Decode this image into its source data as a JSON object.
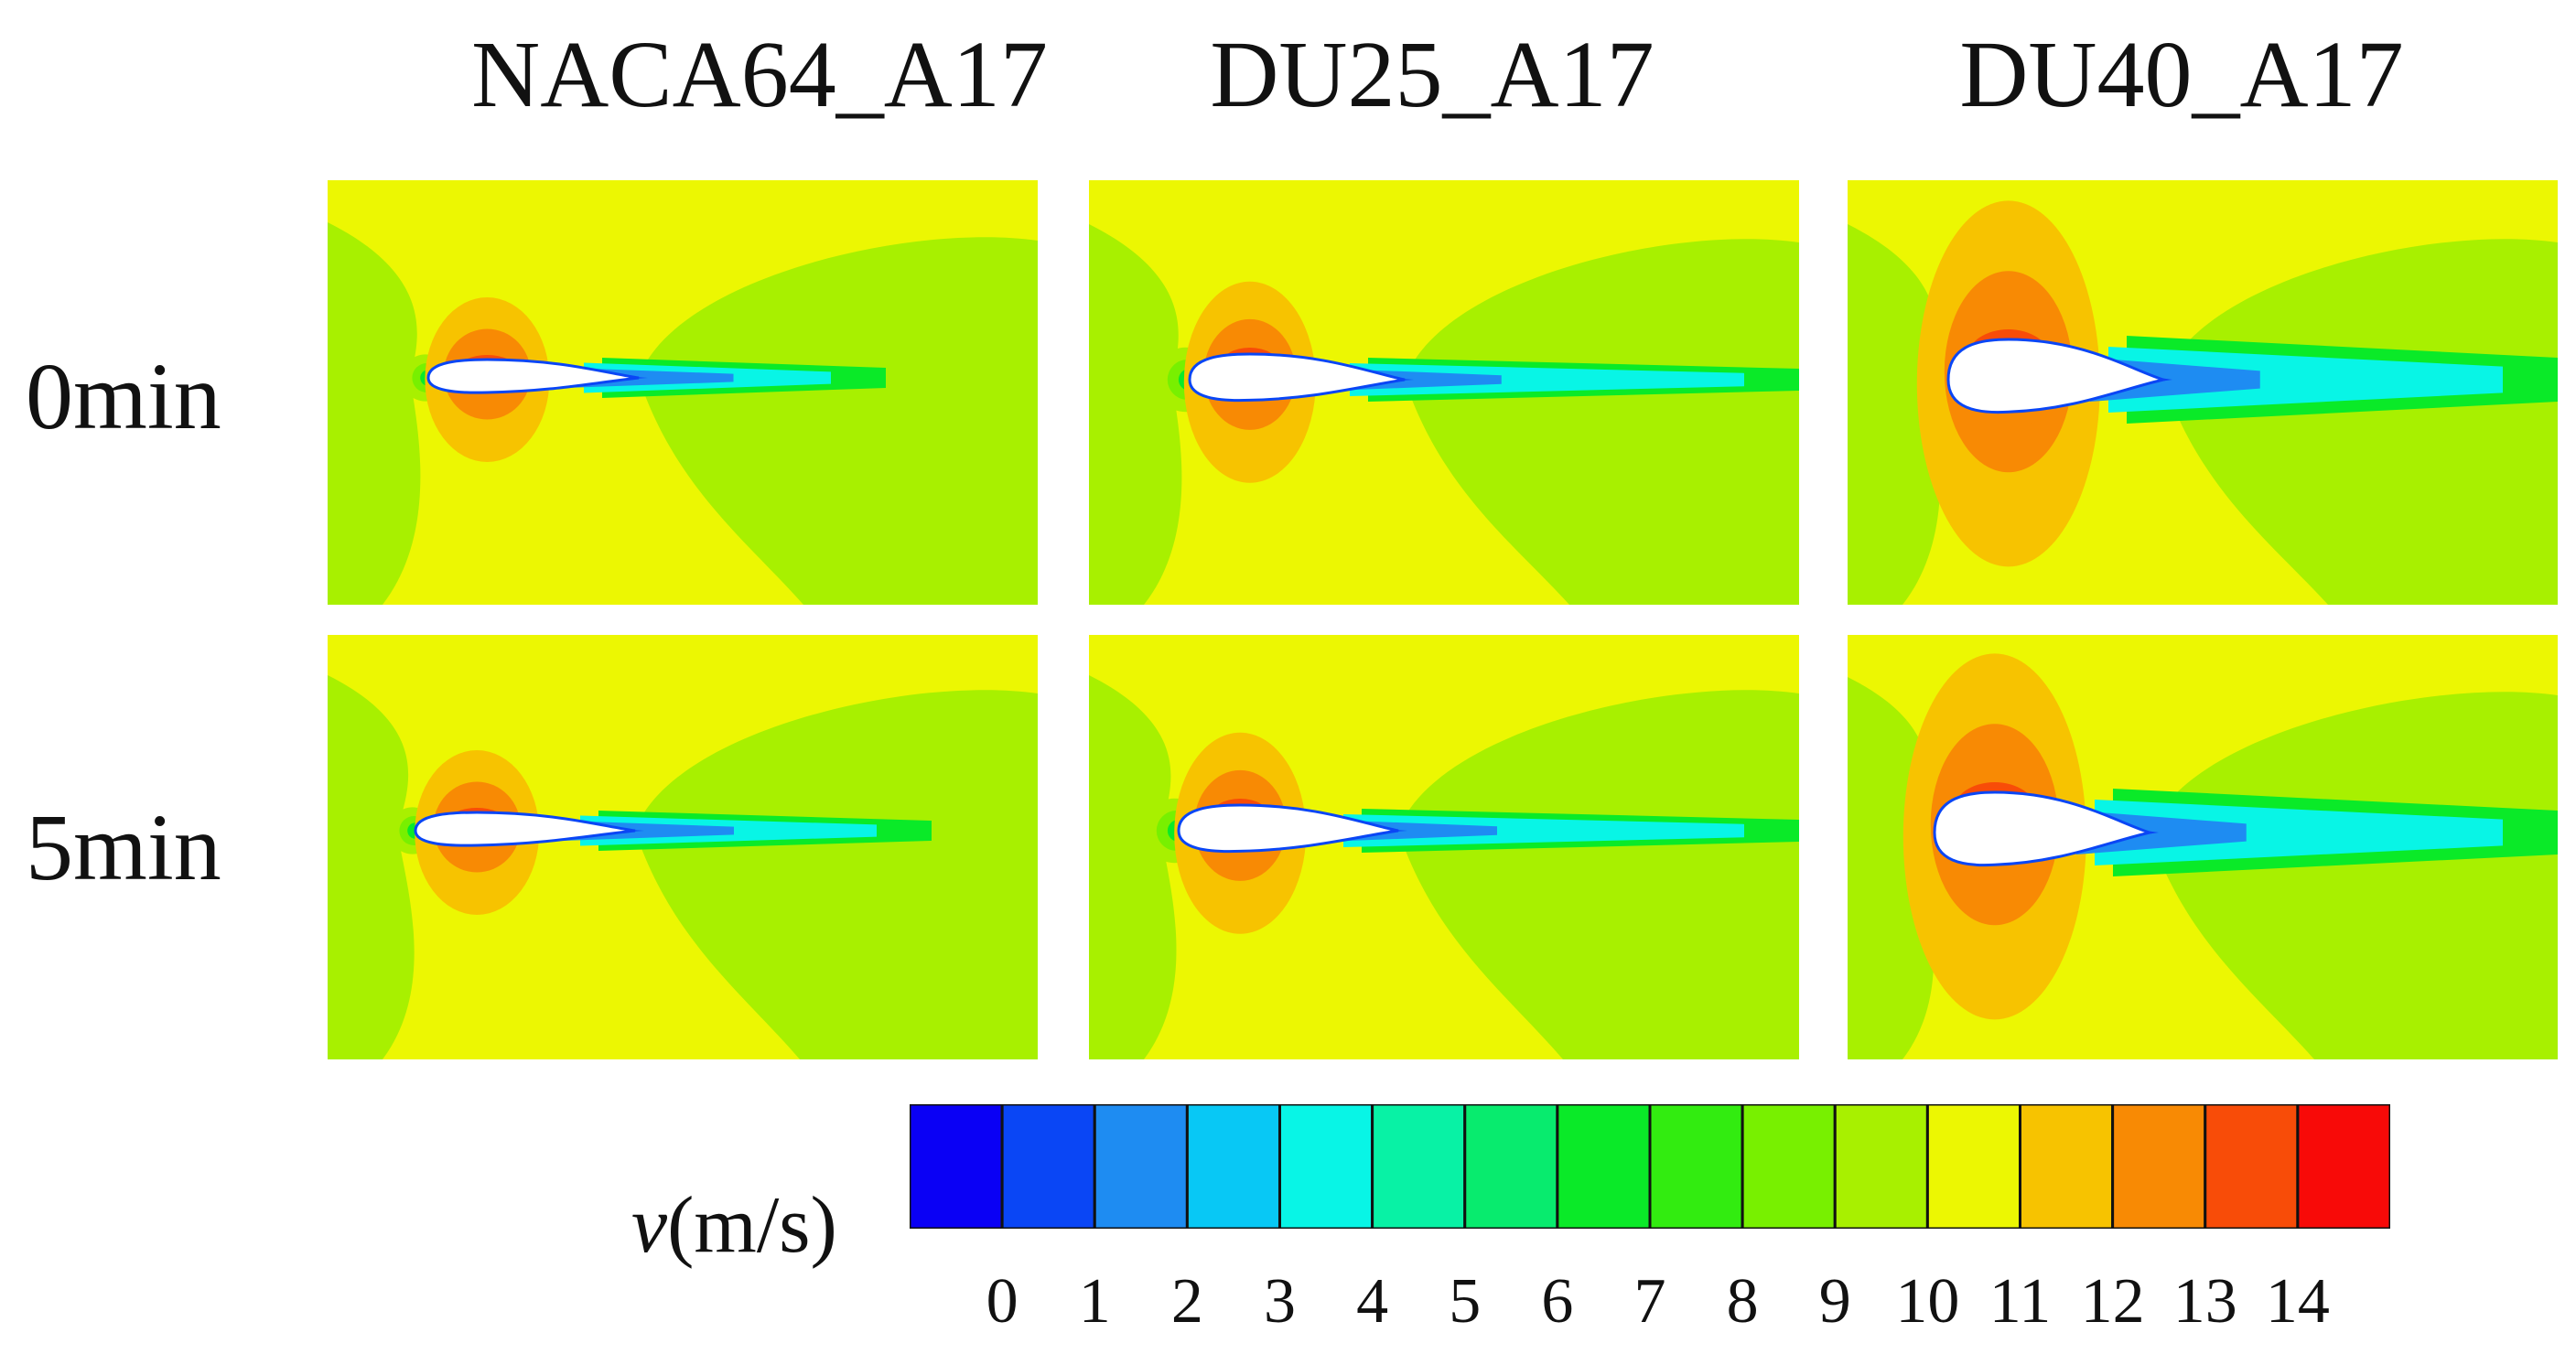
{
  "columns": [
    "NACA64_A17",
    "DU25_A17",
    "DU40_A17"
  ],
  "rows": [
    "0min",
    "5min"
  ],
  "legend": {
    "variable": "v",
    "unit": "(m/s)",
    "ticks": [
      "0",
      "1",
      "2",
      "3",
      "4",
      "5",
      "6",
      "7",
      "8",
      "9",
      "10",
      "11",
      "12",
      "13",
      "14"
    ],
    "colors": [
      "#0a00f5",
      "#0a46f5",
      "#1e8cf2",
      "#08c8f5",
      "#08f5e6",
      "#08f2a5",
      "#08eb6e",
      "#0aea28",
      "#32ec10",
      "#78f000",
      "#a8f000",
      "#ecf702",
      "#f7c300",
      "#f88a04",
      "#f84c08",
      "#f80a08"
    ]
  }
}
